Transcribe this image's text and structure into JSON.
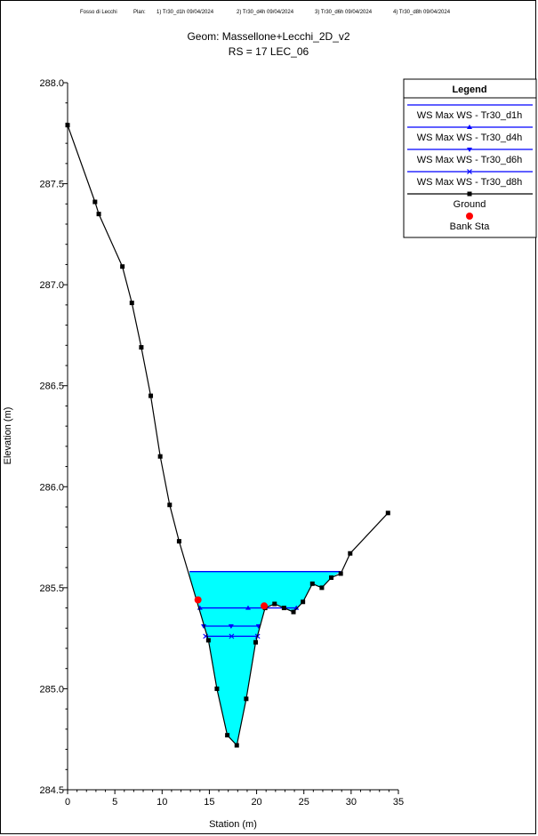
{
  "header": {
    "project": "Fosso di Lecchi",
    "plan_label": "Plan:",
    "plans": [
      "1) Tr30_d1h   09/04/2024",
      "2) Tr30_d4h   09/04/2024",
      "3) Tr30_d6h   09/04/2024",
      "4) Tr30_d8h   09/04/2024"
    ]
  },
  "chart_data": {
    "type": "line",
    "title": "Geom: Massellone+Lecchi_2D_v2",
    "subtitle": "RS = 17  LEC_06",
    "xlabel": "Station (m)",
    "ylabel": "Elevation (m)",
    "xlim": [
      0,
      35
    ],
    "ylim": [
      284.5,
      288.0
    ],
    "x_ticks": [
      0,
      5,
      10,
      15,
      20,
      25,
      30,
      35
    ],
    "y_ticks": [
      284.5,
      285.0,
      285.5,
      286.0,
      286.5,
      287.0,
      287.5,
      288.0
    ],
    "y_tick_labels": [
      "284.5",
      "285.0",
      "285.5",
      "286.0",
      "286.5",
      "287.0",
      "287.5",
      "288.0"
    ],
    "legend_position": "top-right",
    "legend_title": "Legend",
    "colors": {
      "ground": "#000000",
      "ws": "#0000ff",
      "fill": "#00ffff",
      "bank": "#ff0000"
    },
    "ground": {
      "name": "Ground",
      "points": [
        [
          0.0,
          287.79
        ],
        [
          2.9,
          287.41
        ],
        [
          3.3,
          287.35
        ],
        [
          5.8,
          287.09
        ],
        [
          6.8,
          286.91
        ],
        [
          7.8,
          286.69
        ],
        [
          8.8,
          286.45
        ],
        [
          9.8,
          286.15
        ],
        [
          10.8,
          285.91
        ],
        [
          11.8,
          285.73
        ],
        [
          14.9,
          285.24
        ],
        [
          15.8,
          285.0
        ],
        [
          16.9,
          284.77
        ],
        [
          17.9,
          284.72
        ],
        [
          18.9,
          284.95
        ],
        [
          19.9,
          285.23
        ],
        [
          20.9,
          285.4
        ],
        [
          21.9,
          285.42
        ],
        [
          22.9,
          285.4
        ],
        [
          23.9,
          285.38
        ],
        [
          24.9,
          285.43
        ],
        [
          25.9,
          285.52
        ],
        [
          26.9,
          285.5
        ],
        [
          27.9,
          285.55
        ],
        [
          28.9,
          285.57
        ],
        [
          29.9,
          285.67
        ],
        [
          33.9,
          285.87
        ]
      ]
    },
    "bank_stations": {
      "name": "Bank Sta",
      "points": [
        [
          13.8,
          285.44
        ],
        [
          20.8,
          285.41
        ]
      ]
    },
    "series": [
      {
        "name": "WS Max WS - Tr30_d1h",
        "marker": "none",
        "elevation": 285.58,
        "x_range": [
          12.9,
          28.9
        ]
      },
      {
        "name": "WS Max WS - Tr30_d4h",
        "marker": "triangle-up",
        "elevation": 285.4,
        "x_range": [
          14.0,
          24.2
        ]
      },
      {
        "name": "WS Max WS - Tr30_d6h",
        "marker": "triangle-down",
        "elevation": 285.31,
        "x_range": [
          14.4,
          20.2
        ]
      },
      {
        "name": "WS Max WS - Tr30_d8h",
        "marker": "x",
        "elevation": 285.26,
        "x_range": [
          14.6,
          20.1
        ]
      }
    ]
  }
}
